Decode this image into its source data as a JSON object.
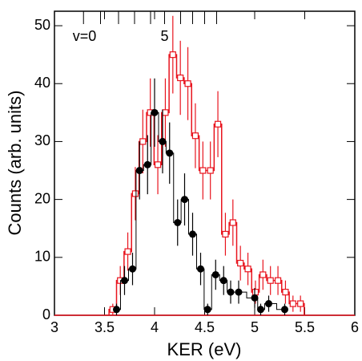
{
  "chart_data": {
    "type": "histogram",
    "x_label": "KER (eV)",
    "y_label": "Counts (arb. units)",
    "xlim": [
      3,
      6
    ],
    "ylim": [
      0,
      52.5
    ],
    "xticks": [
      3,
      3.5,
      4,
      4.5,
      5,
      5.5,
      6
    ],
    "yticks": [
      0,
      10,
      20,
      30,
      40,
      50
    ],
    "levels": [
      3.29,
      3.46,
      3.64,
      3.8,
      3.96,
      4.1,
      4.26,
      4.38,
      4.5,
      4.62
    ],
    "annotations": [
      {
        "text": "v=0",
        "x": 3.3
      },
      {
        "text": "5",
        "x": 4.1
      }
    ],
    "series": [
      {
        "color": "#e8141e",
        "marker": "open-square",
        "bins": [
          3.545,
          3.62,
          3.695,
          3.77,
          3.845,
          3.92,
          3.995,
          4.07,
          4.145,
          4.22,
          4.295,
          4.37,
          4.445,
          4.52,
          4.595,
          4.67,
          4.745,
          4.82,
          4.895,
          4.97,
          5.045,
          5.12,
          5.195,
          5.27,
          5.345,
          5.42,
          5.495
        ],
        "values": [
          1,
          6,
          11,
          21,
          30,
          35,
          26,
          35,
          45,
          41,
          40,
          31,
          25,
          25,
          33,
          14,
          16,
          9,
          8,
          4,
          7,
          6,
          6,
          4,
          2,
          2
        ],
        "errors": [
          1,
          2.5,
          3.3,
          4.6,
          5.5,
          5.9,
          5.1,
          5.9,
          6.7,
          6.4,
          6.3,
          5.6,
          5,
          5,
          5.7,
          3.7,
          4,
          3,
          2.8,
          2,
          2.6,
          2.5,
          2.5,
          2,
          1.4,
          1.4
        ]
      },
      {
        "color": "#000000",
        "marker": "filled-circle",
        "x": [
          3.62,
          3.7,
          3.78,
          3.85,
          3.93,
          4.0,
          4.08,
          4.15,
          4.23,
          4.3,
          4.38,
          4.46,
          4.53,
          4.61,
          4.69,
          4.76,
          4.84,
          5.0,
          5.06,
          5.14,
          5.3
        ],
        "values": [
          1,
          6,
          8,
          25,
          26,
          35,
          30,
          28,
          16,
          20,
          14,
          8,
          1,
          7,
          6,
          4,
          4,
          3,
          1,
          2,
          1
        ],
        "errors": [
          1,
          2.5,
          2.8,
          5,
          5.1,
          5.9,
          5.5,
          5.3,
          4,
          4.5,
          3.7,
          2.8,
          1,
          2.6,
          2.5,
          2,
          2,
          1.7,
          1,
          1.4,
          1
        ]
      }
    ]
  }
}
